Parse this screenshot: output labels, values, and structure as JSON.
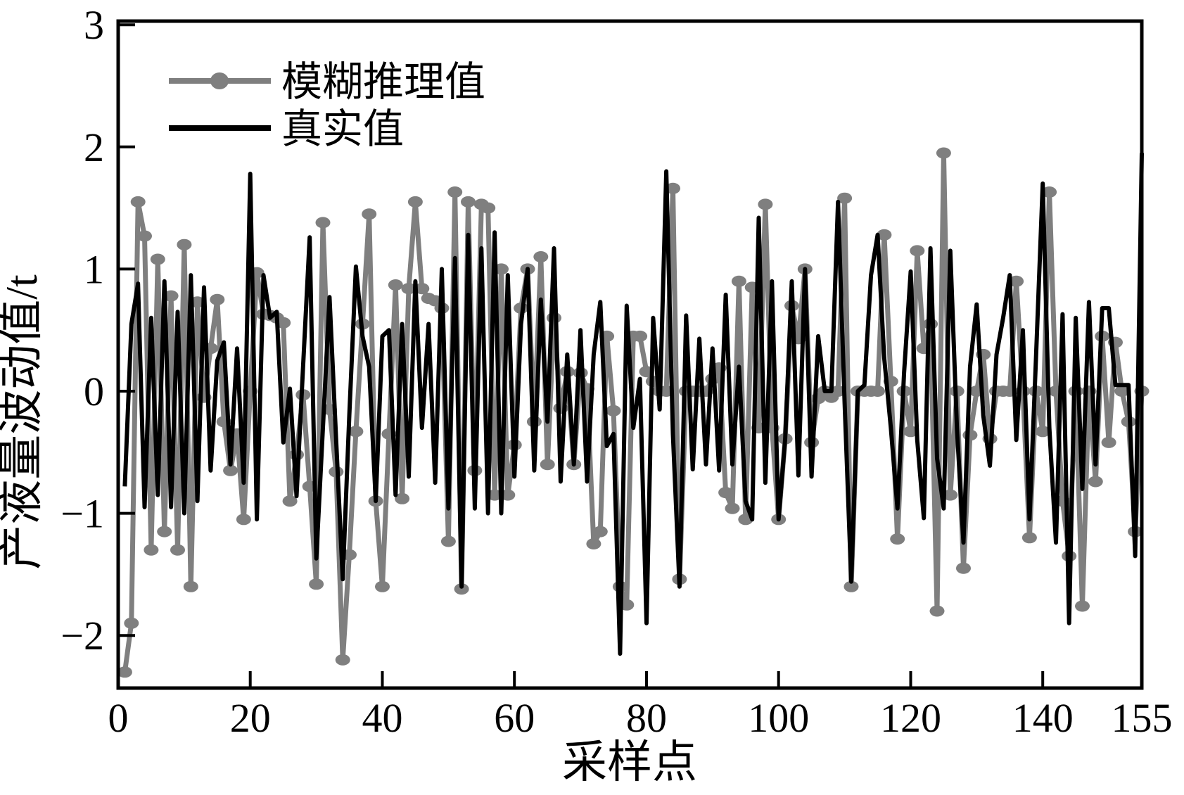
{
  "figure": {
    "xlabel": "采样点",
    "ylabel": "产液量波动值/t",
    "legend": {
      "fuzzy_label": "模糊推理值",
      "true_label": "真实值"
    },
    "colors": {
      "fuzzy_series": "#7f7f7f",
      "true_series": "#000000",
      "axis": "#000000",
      "background": "#ffffff"
    }
  },
  "chart_data": {
    "type": "line",
    "title": "",
    "xlabel": "采样点",
    "ylabel": "产液量波动值/t",
    "grid": false,
    "legend_position": "upper-left-inside",
    "xlim": [
      0,
      155
    ],
    "ylim": [
      -2.43,
      3.03
    ],
    "x_ticks": [
      0,
      20,
      40,
      60,
      80,
      100,
      120,
      140,
      155
    ],
    "y_ticks": [
      3,
      2,
      1,
      0,
      -1,
      -2
    ],
    "x": {
      "from": 1,
      "to": 155,
      "step": 1
    },
    "series": [
      {
        "name": "模糊推理值",
        "color": "#7f7f7f",
        "marker": "circle",
        "line_width": 7,
        "values": [
          -2.3,
          -1.9,
          1.55,
          1.27,
          -1.3,
          1.08,
          -1.15,
          0.78,
          -1.3,
          1.2,
          -1.6,
          0.73,
          -0.05,
          0.35,
          0.75,
          -0.25,
          -0.65,
          -0.35,
          -1.05,
          0.0,
          0.97,
          0.63,
          0.62,
          0.6,
          0.56,
          -0.9,
          -0.52,
          -0.03,
          -0.78,
          -1.58,
          1.38,
          -0.15,
          -0.66,
          -2.2,
          -1.34,
          -0.33,
          0.55,
          1.45,
          -0.9,
          -1.6,
          -0.35,
          0.87,
          -0.88,
          0.84,
          1.55,
          0.84,
          0.76,
          0.74,
          0.68,
          -1.23,
          1.63,
          -1.62,
          1.55,
          -0.65,
          1.53,
          1.5,
          -0.85,
          1.0,
          -0.85,
          -0.44,
          0.68,
          1.0,
          -0.25,
          1.1,
          -0.6,
          0.6,
          -0.14,
          0.16,
          -0.6,
          0.15,
          0.02,
          -1.25,
          -1.15,
          0.45,
          -0.16,
          -1.6,
          -1.75,
          0.45,
          0.45,
          0.16,
          0.08,
          0.0,
          0.0,
          1.66,
          -1.54,
          0.0,
          0.0,
          0.0,
          0.0,
          0.1,
          0.19,
          -0.83,
          -0.96,
          0.9,
          -1.05,
          0.85,
          -0.3,
          1.53,
          -0.3,
          -1.05,
          -0.39,
          0.7,
          0.43,
          1.0,
          -0.42,
          -0.06,
          0.0,
          -0.05,
          0.0,
          1.58,
          -1.6,
          0.0,
          0.0,
          0.0,
          0.0,
          1.28,
          0.08,
          -1.21,
          0.0,
          -0.33,
          1.15,
          0.35,
          0.55,
          -1.8,
          1.95,
          -0.85,
          0.0,
          -1.45,
          -0.36,
          0.0,
          0.3,
          -0.39,
          0.0,
          0.0,
          0.0,
          0.9,
          0.0,
          -1.2,
          0.0,
          -0.33,
          1.63,
          0.0,
          -0.9,
          -1.35,
          0.0,
          -1.76,
          0.0,
          -0.74,
          0.45,
          -0.42,
          0.4,
          0.0,
          -0.25,
          -1.15,
          0.0
        ]
      },
      {
        "name": "真实值",
        "color": "#000000",
        "marker": "none",
        "line_width": 6,
        "values": [
          -0.78,
          0.55,
          0.88,
          -0.95,
          0.6,
          -0.85,
          0.9,
          -0.95,
          0.65,
          -1.0,
          0.95,
          -0.9,
          0.85,
          -0.65,
          0.25,
          0.4,
          -0.6,
          0.35,
          -0.75,
          1.78,
          -1.05,
          0.95,
          0.6,
          0.65,
          -0.42,
          0.02,
          -0.86,
          0.2,
          1.26,
          -1.37,
          -0.3,
          0.77,
          -0.4,
          -1.54,
          -0.2,
          1.02,
          0.45,
          0.2,
          -0.9,
          0.45,
          0.5,
          -0.85,
          0.55,
          -0.7,
          0.9,
          -0.3,
          0.55,
          -0.75,
          1.0,
          -0.96,
          1.09,
          -1.6,
          1.28,
          -0.96,
          1.17,
          -1.0,
          1.3,
          -1.0,
          0.95,
          -0.7,
          0.55,
          1.0,
          -0.65,
          0.75,
          -0.25,
          1.17,
          -0.74,
          0.3,
          -0.6,
          0.5,
          -0.74,
          0.3,
          0.73,
          -0.45,
          -0.35,
          -2.15,
          0.7,
          -0.3,
          0.1,
          -1.9,
          0.6,
          -0.15,
          1.8,
          -0.35,
          -1.6,
          0.62,
          -0.64,
          0.43,
          -0.6,
          0.35,
          -0.65,
          0.79,
          -0.6,
          0.2,
          -0.9,
          -1.05,
          1.42,
          -0.75,
          0.9,
          -1.05,
          -0.39,
          0.9,
          -0.69,
          1.0,
          -0.7,
          0.45,
          0.0,
          0.0,
          1.55,
          -0.1,
          -1.56,
          0.0,
          0.05,
          0.95,
          1.28,
          0.27,
          -0.3,
          -0.96,
          0.15,
          0.98,
          -0.4,
          -1.04,
          1.17,
          -0.55,
          -0.96,
          1.15,
          -0.3,
          -1.24,
          0.2,
          0.71,
          -0.2,
          -0.61,
          0.3,
          0.6,
          0.95,
          -0.4,
          0.5,
          -1.05,
          0.3,
          1.7,
          -0.3,
          -1.24,
          0.63,
          -1.9,
          0.6,
          -0.8,
          0.73,
          -0.6,
          0.68,
          0.68,
          0.05,
          0.05,
          0.05,
          -1.35,
          1.95
        ]
      }
    ]
  }
}
